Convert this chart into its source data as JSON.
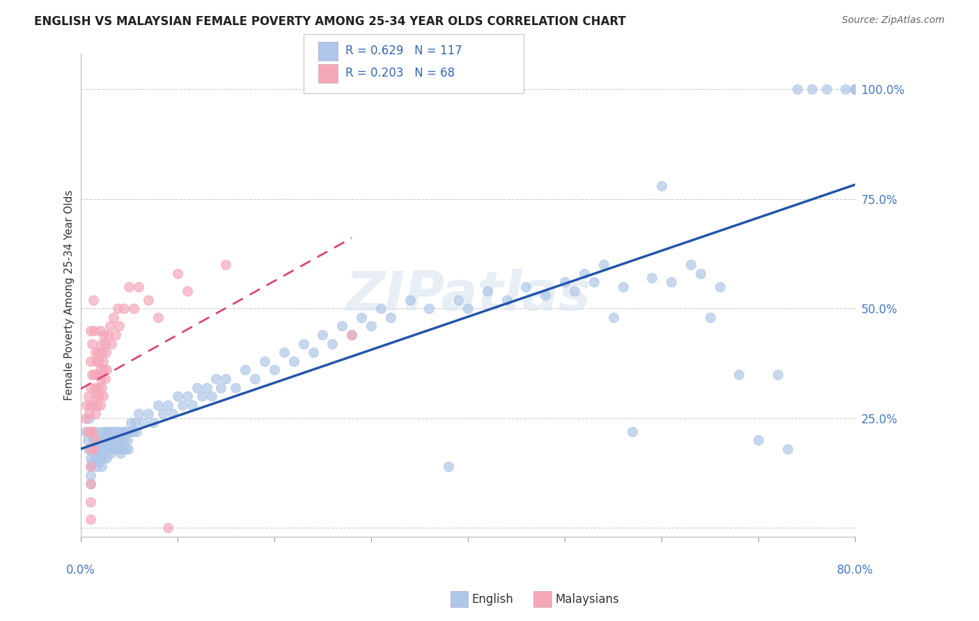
{
  "title": "ENGLISH VS MALAYSIAN FEMALE POVERTY AMONG 25-34 YEAR OLDS CORRELATION CHART",
  "source": "Source: ZipAtlas.com",
  "ylabel": "Female Poverty Among 25-34 Year Olds",
  "ytick_labels": [
    "",
    "25.0%",
    "50.0%",
    "75.0%",
    "100.0%"
  ],
  "ytick_values": [
    0.0,
    0.25,
    0.5,
    0.75,
    1.0
  ],
  "english_color": "#aec6e8",
  "malaysian_color": "#f4a7b9",
  "english_line_color": "#2255aa",
  "malaysian_line_color": "#dd4477",
  "watermark_text": "ZIPatlas",
  "xmin": 0.0,
  "xmax": 0.8,
  "ymin": -0.02,
  "ymax": 1.08,
  "english_scatter": [
    [
      0.005,
      0.22
    ],
    [
      0.007,
      0.2
    ],
    [
      0.008,
      0.18
    ],
    [
      0.009,
      0.25
    ],
    [
      0.01,
      0.16
    ],
    [
      0.01,
      0.14
    ],
    [
      0.01,
      0.12
    ],
    [
      0.01,
      0.1
    ],
    [
      0.011,
      0.22
    ],
    [
      0.012,
      0.18
    ],
    [
      0.012,
      0.15
    ],
    [
      0.013,
      0.2
    ],
    [
      0.014,
      0.17
    ],
    [
      0.015,
      0.22
    ],
    [
      0.015,
      0.19
    ],
    [
      0.016,
      0.16
    ],
    [
      0.017,
      0.14
    ],
    [
      0.018,
      0.18
    ],
    [
      0.019,
      0.15
    ],
    [
      0.02,
      0.2
    ],
    [
      0.02,
      0.16
    ],
    [
      0.021,
      0.22
    ],
    [
      0.022,
      0.18
    ],
    [
      0.022,
      0.14
    ],
    [
      0.023,
      0.2
    ],
    [
      0.024,
      0.16
    ],
    [
      0.025,
      0.22
    ],
    [
      0.025,
      0.18
    ],
    [
      0.026,
      0.2
    ],
    [
      0.027,
      0.16
    ],
    [
      0.028,
      0.22
    ],
    [
      0.029,
      0.18
    ],
    [
      0.03,
      0.22
    ],
    [
      0.03,
      0.19
    ],
    [
      0.031,
      0.17
    ],
    [
      0.032,
      0.2
    ],
    [
      0.033,
      0.18
    ],
    [
      0.034,
      0.22
    ],
    [
      0.035,
      0.2
    ],
    [
      0.036,
      0.18
    ],
    [
      0.037,
      0.22
    ],
    [
      0.038,
      0.2
    ],
    [
      0.039,
      0.18
    ],
    [
      0.04,
      0.22
    ],
    [
      0.04,
      0.19
    ],
    [
      0.041,
      0.17
    ],
    [
      0.042,
      0.2
    ],
    [
      0.043,
      0.18
    ],
    [
      0.044,
      0.22
    ],
    [
      0.045,
      0.2
    ],
    [
      0.046,
      0.18
    ],
    [
      0.047,
      0.22
    ],
    [
      0.048,
      0.2
    ],
    [
      0.049,
      0.18
    ],
    [
      0.05,
      0.22
    ],
    [
      0.052,
      0.24
    ],
    [
      0.054,
      0.22
    ],
    [
      0.056,
      0.24
    ],
    [
      0.058,
      0.22
    ],
    [
      0.06,
      0.26
    ],
    [
      0.065,
      0.24
    ],
    [
      0.07,
      0.26
    ],
    [
      0.075,
      0.24
    ],
    [
      0.08,
      0.28
    ],
    [
      0.085,
      0.26
    ],
    [
      0.09,
      0.28
    ],
    [
      0.095,
      0.26
    ],
    [
      0.1,
      0.3
    ],
    [
      0.105,
      0.28
    ],
    [
      0.11,
      0.3
    ],
    [
      0.115,
      0.28
    ],
    [
      0.12,
      0.32
    ],
    [
      0.125,
      0.3
    ],
    [
      0.13,
      0.32
    ],
    [
      0.135,
      0.3
    ],
    [
      0.14,
      0.34
    ],
    [
      0.145,
      0.32
    ],
    [
      0.15,
      0.34
    ],
    [
      0.16,
      0.32
    ],
    [
      0.17,
      0.36
    ],
    [
      0.18,
      0.34
    ],
    [
      0.19,
      0.38
    ],
    [
      0.2,
      0.36
    ],
    [
      0.21,
      0.4
    ],
    [
      0.22,
      0.38
    ],
    [
      0.23,
      0.42
    ],
    [
      0.24,
      0.4
    ],
    [
      0.25,
      0.44
    ],
    [
      0.26,
      0.42
    ],
    [
      0.27,
      0.46
    ],
    [
      0.28,
      0.44
    ],
    [
      0.29,
      0.48
    ],
    [
      0.3,
      0.46
    ],
    [
      0.31,
      0.5
    ],
    [
      0.32,
      0.48
    ],
    [
      0.34,
      0.52
    ],
    [
      0.36,
      0.5
    ],
    [
      0.38,
      0.14
    ],
    [
      0.39,
      0.52
    ],
    [
      0.4,
      0.5
    ],
    [
      0.42,
      0.54
    ],
    [
      0.44,
      0.52
    ],
    [
      0.46,
      0.55
    ],
    [
      0.48,
      0.53
    ],
    [
      0.5,
      0.56
    ],
    [
      0.51,
      0.54
    ],
    [
      0.52,
      0.58
    ],
    [
      0.53,
      0.56
    ],
    [
      0.54,
      0.6
    ],
    [
      0.55,
      0.48
    ],
    [
      0.56,
      0.55
    ],
    [
      0.57,
      0.22
    ],
    [
      0.59,
      0.57
    ],
    [
      0.6,
      0.78
    ],
    [
      0.61,
      0.56
    ],
    [
      0.63,
      0.6
    ],
    [
      0.64,
      0.58
    ],
    [
      0.65,
      0.48
    ],
    [
      0.66,
      0.55
    ],
    [
      0.68,
      0.35
    ],
    [
      0.7,
      0.2
    ],
    [
      0.72,
      0.35
    ],
    [
      0.73,
      0.18
    ],
    [
      0.74,
      1.0
    ],
    [
      0.755,
      1.0
    ],
    [
      0.77,
      1.0
    ],
    [
      0.79,
      1.0
    ],
    [
      0.8,
      1.0
    ],
    [
      0.8,
      1.0
    ],
    [
      0.8,
      1.0
    ],
    [
      0.8,
      1.0
    ],
    [
      0.8,
      1.0
    ]
  ],
  "malaysian_scatter": [
    [
      0.005,
      0.25
    ],
    [
      0.006,
      0.28
    ],
    [
      0.007,
      0.22
    ],
    [
      0.008,
      0.3
    ],
    [
      0.009,
      0.26
    ],
    [
      0.01,
      0.45
    ],
    [
      0.01,
      0.38
    ],
    [
      0.01,
      0.32
    ],
    [
      0.01,
      0.28
    ],
    [
      0.01,
      0.22
    ],
    [
      0.01,
      0.18
    ],
    [
      0.01,
      0.14
    ],
    [
      0.01,
      0.1
    ],
    [
      0.01,
      0.06
    ],
    [
      0.01,
      0.02
    ],
    [
      0.012,
      0.42
    ],
    [
      0.012,
      0.35
    ],
    [
      0.012,
      0.28
    ],
    [
      0.012,
      0.22
    ],
    [
      0.013,
      0.52
    ],
    [
      0.013,
      0.18
    ],
    [
      0.014,
      0.45
    ],
    [
      0.014,
      0.35
    ],
    [
      0.015,
      0.4
    ],
    [
      0.015,
      0.32
    ],
    [
      0.015,
      0.26
    ],
    [
      0.015,
      0.2
    ],
    [
      0.016,
      0.38
    ],
    [
      0.016,
      0.3
    ],
    [
      0.017,
      0.35
    ],
    [
      0.017,
      0.28
    ],
    [
      0.018,
      0.4
    ],
    [
      0.018,
      0.32
    ],
    [
      0.019,
      0.38
    ],
    [
      0.019,
      0.3
    ],
    [
      0.02,
      0.45
    ],
    [
      0.02,
      0.36
    ],
    [
      0.02,
      0.28
    ],
    [
      0.021,
      0.42
    ],
    [
      0.021,
      0.34
    ],
    [
      0.022,
      0.4
    ],
    [
      0.022,
      0.32
    ],
    [
      0.023,
      0.38
    ],
    [
      0.023,
      0.3
    ],
    [
      0.024,
      0.44
    ],
    [
      0.024,
      0.36
    ],
    [
      0.025,
      0.42
    ],
    [
      0.025,
      0.34
    ],
    [
      0.026,
      0.4
    ],
    [
      0.027,
      0.36
    ],
    [
      0.028,
      0.44
    ],
    [
      0.03,
      0.46
    ],
    [
      0.032,
      0.42
    ],
    [
      0.034,
      0.48
    ],
    [
      0.036,
      0.44
    ],
    [
      0.038,
      0.5
    ],
    [
      0.04,
      0.46
    ],
    [
      0.045,
      0.5
    ],
    [
      0.05,
      0.55
    ],
    [
      0.055,
      0.5
    ],
    [
      0.06,
      0.55
    ],
    [
      0.07,
      0.52
    ],
    [
      0.08,
      0.48
    ],
    [
      0.09,
      0.0
    ],
    [
      0.1,
      0.58
    ],
    [
      0.11,
      0.54
    ],
    [
      0.15,
      0.6
    ],
    [
      0.28,
      0.44
    ]
  ]
}
